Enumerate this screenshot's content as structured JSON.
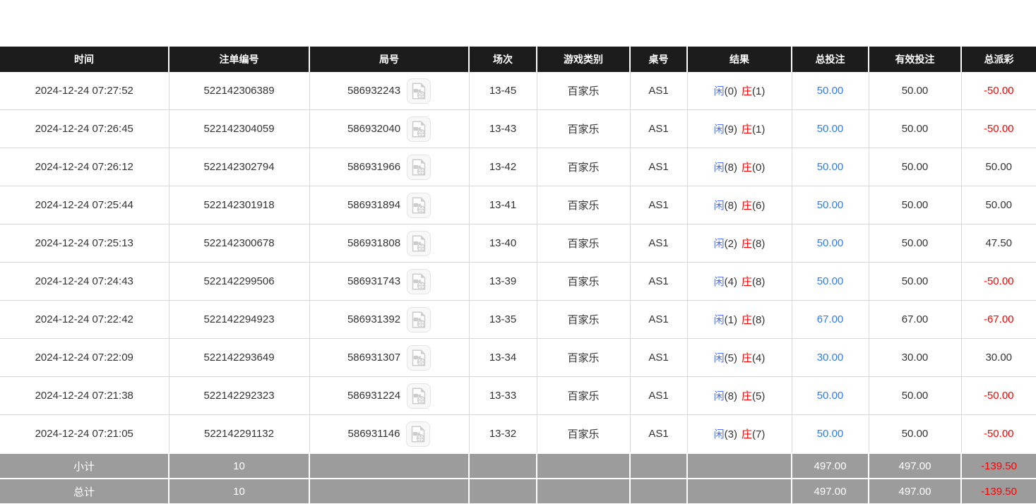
{
  "colors": {
    "header_bg": "#1c1c1c",
    "footer_bg": "#9c9c9c",
    "blue": "#2d7bf5",
    "player_blue": "#4f6ef5",
    "red": "#ff0000",
    "body_text": "#333333",
    "border": "#d8d8d8"
  },
  "table": {
    "headers": [
      {
        "key": "time",
        "label": "时间"
      },
      {
        "key": "bet_no",
        "label": "注单编号"
      },
      {
        "key": "round_no",
        "label": "局号"
      },
      {
        "key": "session",
        "label": "场次"
      },
      {
        "key": "game_type",
        "label": "游戏类别"
      },
      {
        "key": "table_no",
        "label": "桌号"
      },
      {
        "key": "result",
        "label": "结果"
      },
      {
        "key": "total_bet",
        "label": "总投注"
      },
      {
        "key": "valid_bet",
        "label": "有效投注"
      },
      {
        "key": "total_payout",
        "label": "总派彩"
      }
    ],
    "rows": [
      {
        "time": "2024-12-24 07:27:52",
        "bet_no": "522142306389",
        "round_no": "586932243",
        "session": "13-45",
        "game_type": "百家乐",
        "table_no": "AS1",
        "player_label": "闲",
        "player_score": "(0)",
        "banker_label": "庄",
        "banker_score": "(1)",
        "total_bet": "50.00",
        "valid_bet": "50.00",
        "total_payout": "-50.00"
      },
      {
        "time": "2024-12-24 07:26:45",
        "bet_no": "522142304059",
        "round_no": "586932040",
        "session": "13-43",
        "game_type": "百家乐",
        "table_no": "AS1",
        "player_label": "闲",
        "player_score": "(9)",
        "banker_label": "庄",
        "banker_score": "(1)",
        "total_bet": "50.00",
        "valid_bet": "50.00",
        "total_payout": "-50.00"
      },
      {
        "time": "2024-12-24 07:26:12",
        "bet_no": "522142302794",
        "round_no": "586931966",
        "session": "13-42",
        "game_type": "百家乐",
        "table_no": "AS1",
        "player_label": "闲",
        "player_score": "(8)",
        "banker_label": "庄",
        "banker_score": "(0)",
        "total_bet": "50.00",
        "valid_bet": "50.00",
        "total_payout": "50.00"
      },
      {
        "time": "2024-12-24 07:25:44",
        "bet_no": "522142301918",
        "round_no": "586931894",
        "session": "13-41",
        "game_type": "百家乐",
        "table_no": "AS1",
        "player_label": "闲",
        "player_score": "(8)",
        "banker_label": "庄",
        "banker_score": "(6)",
        "total_bet": "50.00",
        "valid_bet": "50.00",
        "total_payout": "50.00"
      },
      {
        "time": "2024-12-24 07:25:13",
        "bet_no": "522142300678",
        "round_no": "586931808",
        "session": "13-40",
        "game_type": "百家乐",
        "table_no": "AS1",
        "player_label": "闲",
        "player_score": "(2)",
        "banker_label": "庄",
        "banker_score": "(8)",
        "total_bet": "50.00",
        "valid_bet": "50.00",
        "total_payout": "47.50"
      },
      {
        "time": "2024-12-24 07:24:43",
        "bet_no": "522142299506",
        "round_no": "586931743",
        "session": "13-39",
        "game_type": "百家乐",
        "table_no": "AS1",
        "player_label": "闲",
        "player_score": "(4)",
        "banker_label": "庄",
        "banker_score": "(8)",
        "total_bet": "50.00",
        "valid_bet": "50.00",
        "total_payout": "-50.00"
      },
      {
        "time": "2024-12-24 07:22:42",
        "bet_no": "522142294923",
        "round_no": "586931392",
        "session": "13-35",
        "game_type": "百家乐",
        "table_no": "AS1",
        "player_label": "闲",
        "player_score": "(1)",
        "banker_label": "庄",
        "banker_score": "(8)",
        "total_bet": "67.00",
        "valid_bet": "67.00",
        "total_payout": "-67.00"
      },
      {
        "time": "2024-12-24 07:22:09",
        "bet_no": "522142293649",
        "round_no": "586931307",
        "session": "13-34",
        "game_type": "百家乐",
        "table_no": "AS1",
        "player_label": "闲",
        "player_score": "(5)",
        "banker_label": "庄",
        "banker_score": "(4)",
        "total_bet": "30.00",
        "valid_bet": "30.00",
        "total_payout": "30.00"
      },
      {
        "time": "2024-12-24 07:21:38",
        "bet_no": "522142292323",
        "round_no": "586931224",
        "session": "13-33",
        "game_type": "百家乐",
        "table_no": "AS1",
        "player_label": "闲",
        "player_score": "(8)",
        "banker_label": "庄",
        "banker_score": "(5)",
        "total_bet": "50.00",
        "valid_bet": "50.00",
        "total_payout": "-50.00"
      },
      {
        "time": "2024-12-24 07:21:05",
        "bet_no": "522142291132",
        "round_no": "586931146",
        "session": "13-32",
        "game_type": "百家乐",
        "table_no": "AS1",
        "player_label": "闲",
        "player_score": "(3)",
        "banker_label": "庄",
        "banker_score": "(7)",
        "total_bet": "50.00",
        "valid_bet": "50.00",
        "total_payout": "-50.00"
      }
    ],
    "footer_rows": [
      {
        "label": "小计",
        "count": "10",
        "total_bet": "497.00",
        "valid_bet": "497.00",
        "total_payout": "-139.50"
      },
      {
        "label": "总计",
        "count": "10",
        "total_bet": "497.00",
        "valid_bet": "497.00",
        "total_payout": "-139.50"
      }
    ],
    "video_icon_name": "video-replay-icon"
  }
}
